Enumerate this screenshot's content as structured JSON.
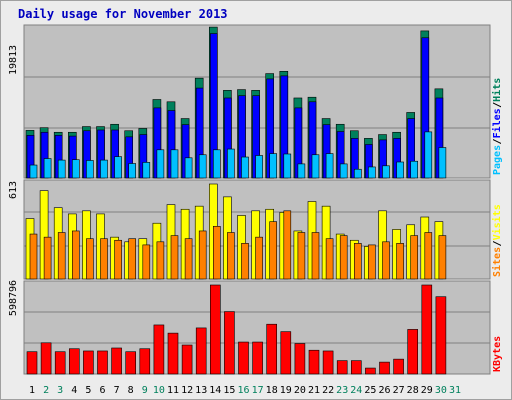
{
  "title": "Daily usage for November 2013",
  "colors": {
    "background": "#ececec",
    "plot": "#c0c0c0",
    "hits": "#00805c",
    "files": "#0000ff",
    "pages": "#00c0ff",
    "visits": "#ffff00",
    "sites": "#ff8000",
    "kbytes": "#ff0000",
    "title": "#0000c0",
    "weekend": "#00805c"
  },
  "chart_data": [
    {
      "type": "bar",
      "name": "hits-files-pages",
      "categories": [
        "1",
        "2",
        "3",
        "4",
        "5",
        "6",
        "7",
        "8",
        "9",
        "10",
        "11",
        "12",
        "13",
        "14",
        "15",
        "16",
        "17",
        "18",
        "19",
        "20",
        "21",
        "22",
        "23",
        "24",
        "25",
        "26",
        "27",
        "28",
        "29",
        "30",
        "31"
      ],
      "weekend_days": [
        "2",
        "3",
        "9",
        "10",
        "16",
        "17",
        "23",
        "24",
        "30",
        "31"
      ],
      "y_max_label": "19813",
      "ylim": [
        0,
        19813
      ],
      "legend": [
        {
          "label": "Hits",
          "color": "#00805c"
        },
        {
          "label": "Files",
          "color": "#0000ff"
        },
        {
          "label": "Pages",
          "color": "#00c0ff"
        }
      ],
      "series": [
        {
          "name": "Hits",
          "values": [
            6250,
            6600,
            6000,
            6000,
            6750,
            6750,
            7050,
            6200,
            6500,
            10300,
            10000,
            7800,
            13100,
            19800,
            11500,
            11600,
            11500,
            13700,
            14000,
            10500,
            10600,
            7800,
            7050,
            6200,
            5200,
            5700,
            6000,
            8600,
            19300,
            11700,
            0
          ]
        },
        {
          "name": "Files",
          "values": [
            5600,
            6000,
            5600,
            5500,
            6200,
            6300,
            6300,
            5400,
            5700,
            9200,
            8850,
            7000,
            11800,
            18950,
            10500,
            10800,
            10800,
            13000,
            13400,
            9200,
            10000,
            7000,
            6100,
            5200,
            4400,
            5000,
            5200,
            7800,
            18400,
            10500,
            0
          ]
        },
        {
          "name": "Pages",
          "values": [
            1700,
            2550,
            2350,
            2400,
            2300,
            2350,
            2800,
            1900,
            2050,
            3700,
            3700,
            2650,
            3050,
            3700,
            3800,
            2750,
            2950,
            3200,
            3150,
            1850,
            3050,
            3200,
            1850,
            1150,
            1450,
            1600,
            2100,
            2200,
            6050,
            4000,
            0
          ]
        }
      ]
    },
    {
      "type": "bar",
      "name": "visits-sites",
      "categories": [
        "1",
        "2",
        "3",
        "4",
        "5",
        "6",
        "7",
        "8",
        "9",
        "10",
        "11",
        "12",
        "13",
        "14",
        "15",
        "16",
        "17",
        "18",
        "19",
        "20",
        "21",
        "22",
        "23",
        "24",
        "25",
        "26",
        "27",
        "28",
        "29",
        "30",
        "31"
      ],
      "y_max_label": "613",
      "ylim": [
        0,
        613
      ],
      "legend": [
        {
          "label": "Visits",
          "color": "#ffff00"
        },
        {
          "label": "Sites",
          "color": "#ff8000"
        }
      ],
      "series": [
        {
          "name": "Visits",
          "values": [
            390,
            570,
            460,
            420,
            440,
            420,
            270,
            240,
            260,
            360,
            480,
            450,
            470,
            613,
            530,
            410,
            440,
            450,
            430,
            310,
            500,
            470,
            290,
            250,
            210,
            440,
            320,
            350,
            400,
            370,
            0
          ]
        },
        {
          "name": "Sites",
          "values": [
            290,
            270,
            300,
            310,
            260,
            260,
            250,
            260,
            220,
            240,
            280,
            260,
            310,
            340,
            300,
            230,
            270,
            370,
            440,
            300,
            300,
            260,
            280,
            230,
            220,
            240,
            230,
            280,
            300,
            280,
            0
          ]
        }
      ]
    },
    {
      "type": "bar",
      "name": "kbytes",
      "categories": [
        "1",
        "2",
        "3",
        "4",
        "5",
        "6",
        "7",
        "8",
        "9",
        "10",
        "11",
        "12",
        "13",
        "14",
        "15",
        "16",
        "17",
        "18",
        "19",
        "20",
        "21",
        "22",
        "23",
        "24",
        "25",
        "26",
        "27",
        "28",
        "29",
        "30",
        "31"
      ],
      "y_max_label": "598796",
      "ylim": [
        0,
        598796
      ],
      "legend": [
        {
          "label": "KBytes",
          "color": "#ff0000"
        }
      ],
      "series": [
        {
          "name": "KBytes",
          "values": [
            150000,
            210000,
            150000,
            170000,
            155000,
            155000,
            175000,
            150000,
            170000,
            330000,
            275000,
            195000,
            310000,
            598796,
            420000,
            215000,
            215000,
            335000,
            285000,
            205000,
            160000,
            155000,
            90000,
            90000,
            40000,
            80000,
            100000,
            300000,
            598796,
            520000,
            0
          ]
        }
      ]
    }
  ]
}
